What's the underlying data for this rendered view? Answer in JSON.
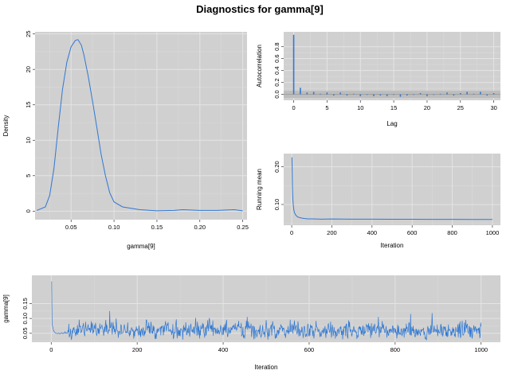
{
  "title": "Diagnostics for gamma[9]",
  "colors": {
    "line": "#2f78d3",
    "panel": "#d0d0d0",
    "grid_major": "#e4e4e4",
    "grid_minor": "#dadada",
    "zero_line": "#999999"
  },
  "chart_data": [
    {
      "id": "density",
      "type": "line",
      "xlabel": "gamma[9]",
      "ylabel": "Density",
      "xlim": [
        0.008,
        0.255
      ],
      "ylim": [
        -1.2,
        25.3
      ],
      "xticks": [
        0.05,
        0.1,
        0.15,
        0.2,
        0.25
      ],
      "xtick_labels": [
        "0.05",
        "0.10",
        "0.15",
        "0.20",
        "0.25"
      ],
      "yticks": [
        0,
        5,
        10,
        15,
        20,
        25
      ],
      "ytick_labels": [
        "0",
        "5",
        "10",
        "15",
        "20",
        "25"
      ],
      "grid": true,
      "x": [
        0.01,
        0.02,
        0.025,
        0.03,
        0.035,
        0.04,
        0.045,
        0.05,
        0.055,
        0.058,
        0.062,
        0.065,
        0.07,
        0.075,
        0.08,
        0.085,
        0.09,
        0.095,
        0.1,
        0.11,
        0.12,
        0.13,
        0.15,
        0.17,
        0.18,
        0.2,
        0.22,
        0.24,
        0.25
      ],
      "y": [
        0.1,
        0.6,
        2.2,
        6.0,
        11.8,
        17.2,
        21.0,
        23.2,
        24.1,
        24.2,
        23.4,
        22.0,
        19.0,
        15.5,
        11.8,
        8.0,
        5.0,
        2.6,
        1.3,
        0.6,
        0.4,
        0.2,
        0.05,
        0.1,
        0.2,
        0.1,
        0.1,
        0.2,
        0.05
      ]
    },
    {
      "id": "autocorrelation",
      "type": "bar",
      "xlabel": "Lag",
      "ylabel": "Autocorrelation",
      "xlim": [
        -1.5,
        31
      ],
      "ylim": [
        -0.1,
        1.05
      ],
      "xticks": [
        0,
        5,
        10,
        15,
        20,
        25,
        30
      ],
      "xtick_labels": [
        "0",
        "5",
        "10",
        "15",
        "20",
        "25",
        "30"
      ],
      "yticks": [
        0.0,
        0.2,
        0.4,
        0.6,
        0.8
      ],
      "ytick_labels": [
        "0.0",
        "0.2",
        "0.4",
        "0.6",
        "0.8"
      ],
      "grid": true,
      "confidence_band": [
        -0.06,
        0.06
      ],
      "lags": [
        0,
        1,
        2,
        3,
        4,
        5,
        6,
        7,
        8,
        9,
        10,
        11,
        12,
        13,
        14,
        15,
        16,
        17,
        18,
        19,
        20,
        21,
        22,
        23,
        24,
        25,
        26,
        27,
        28,
        29,
        30
      ],
      "values": [
        1.0,
        0.11,
        0.03,
        0.04,
        0.01,
        0.03,
        -0.02,
        0.03,
        -0.02,
        0.01,
        -0.03,
        -0.01,
        -0.03,
        -0.02,
        -0.03,
        -0.01,
        -0.04,
        -0.02,
        -0.01,
        0.02,
        -0.03,
        -0.01,
        0.01,
        0.03,
        -0.02,
        0.02,
        0.04,
        0.01,
        0.04,
        -0.02,
        0.02
      ]
    },
    {
      "id": "running_mean",
      "type": "line",
      "xlabel": "Iteration",
      "ylabel": "Running mean",
      "xlim": [
        -40,
        1040
      ],
      "ylim": [
        0.045,
        0.235
      ],
      "xticks": [
        0,
        200,
        400,
        600,
        800,
        1000
      ],
      "xtick_labels": [
        "0",
        "200",
        "400",
        "600",
        "800",
        "1000"
      ],
      "yticks": [
        0.1,
        0.2
      ],
      "ytick_labels": [
        "0.10",
        "0.20"
      ],
      "grid": true,
      "x": [
        1,
        2,
        3,
        4,
        5,
        6,
        8,
        10,
        12,
        15,
        20,
        25,
        30,
        40,
        50,
        60,
        80,
        100,
        150,
        200,
        300,
        400,
        500,
        600,
        700,
        800,
        900,
        1000
      ],
      "y": [
        0.225,
        0.2,
        0.165,
        0.14,
        0.125,
        0.11,
        0.097,
        0.088,
        0.082,
        0.077,
        0.072,
        0.069,
        0.067,
        0.065,
        0.064,
        0.063,
        0.062,
        0.062,
        0.061,
        0.0615,
        0.061,
        0.061,
        0.0608,
        0.0608,
        0.0606,
        0.0605,
        0.0604,
        0.0602
      ]
    },
    {
      "id": "trace",
      "type": "line",
      "xlabel": "Iteration",
      "ylabel": "gamma[9]",
      "xlim": [
        -45,
        1045
      ],
      "ylim": [
        0.02,
        0.245
      ],
      "xticks": [
        0,
        200,
        400,
        600,
        800,
        1000
      ],
      "xtick_labels": [
        "0",
        "200",
        "400",
        "600",
        "800",
        "1000"
      ],
      "yticks": [
        0.05,
        0.1,
        0.15
      ],
      "ytick_labels": [
        "0.05",
        "0.10",
        "0.15"
      ],
      "grid": true,
      "n_iterations": 1000,
      "initial_values": [
        0.225,
        0.08,
        0.075,
        0.068,
        0.062,
        0.058,
        0.055,
        0.053,
        0.052,
        0.051,
        0.05,
        0.05,
        0.049,
        0.049,
        0.05,
        0.05,
        0.051,
        0.05,
        0.049,
        0.048,
        0.049,
        0.05,
        0.051,
        0.052,
        0.051,
        0.05,
        0.049,
        0.05,
        0.051,
        0.05,
        0.051,
        0.055,
        0.052,
        0.05,
        0.051,
        0.052,
        0.05,
        0.051,
        0.06,
        0.055
      ],
      "mean_level": 0.06,
      "spread": 0.014,
      "peaks": [
        [
          40,
          0.082
        ],
        [
          95,
          0.085
        ],
        [
          135,
          0.125
        ],
        [
          150,
          0.1
        ],
        [
          220,
          0.095
        ],
        [
          290,
          0.097
        ],
        [
          335,
          0.102
        ],
        [
          375,
          0.093
        ],
        [
          455,
          0.105
        ],
        [
          565,
          0.093
        ],
        [
          615,
          0.092
        ],
        [
          760,
          0.105
        ],
        [
          835,
          0.115
        ],
        [
          885,
          0.118
        ],
        [
          950,
          0.09
        ]
      ],
      "troughs": [
        [
          470,
          0.03
        ],
        [
          660,
          0.032
        ],
        [
          710,
          0.033
        ],
        [
          780,
          0.035
        ],
        [
          975,
          0.036
        ]
      ]
    }
  ]
}
